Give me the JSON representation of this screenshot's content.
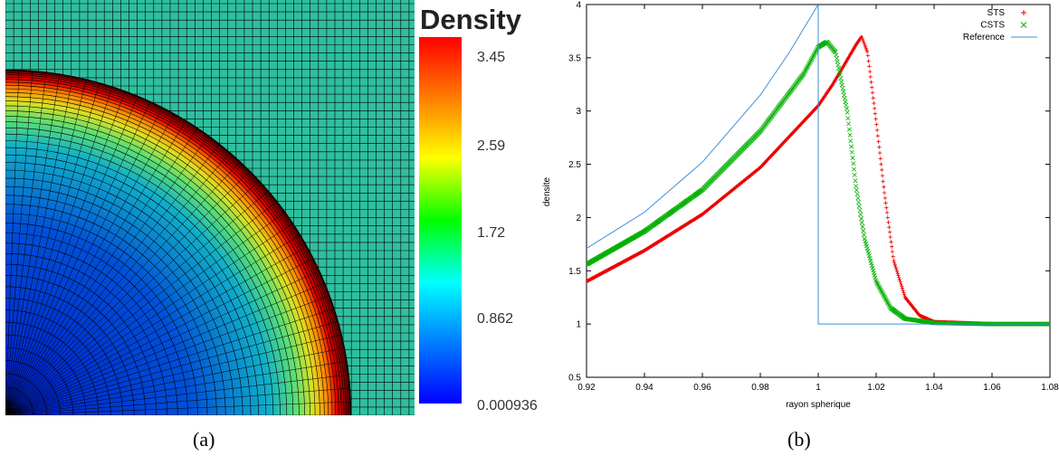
{
  "panel_a": {
    "caption": "(a)",
    "colorbar": {
      "title": "Density",
      "ticks": [
        "3.45",
        "2.59",
        "1.72",
        "0.862",
        "0.000936"
      ],
      "colors": [
        "#ff0000",
        "#ff8000",
        "#ffff00",
        "#00ff00",
        "#00ffff",
        "#0080ff",
        "#0000ff"
      ]
    },
    "mesh": {
      "background_color": "#2fbf9f",
      "line_color": "#000000"
    }
  },
  "panel_b": {
    "caption": "(b)"
  },
  "chart_data": {
    "type": "scatter",
    "xlabel": "rayon spherique",
    "ylabel": "densite",
    "xlim": [
      0.92,
      1.08
    ],
    "ylim": [
      0.5,
      4
    ],
    "xticks": [
      "0.92",
      "0.94",
      "0.96",
      "0.98",
      "1",
      "1.02",
      "1.04",
      "1.06",
      "1.08"
    ],
    "yticks": [
      "0.5",
      "1",
      "1.5",
      "2",
      "2.5",
      "3",
      "3.5",
      "4"
    ],
    "legend_position": "top-right",
    "grid": false,
    "series": [
      {
        "name": "STS",
        "marker": "+",
        "color": "#ee0000",
        "x": [
          0.92,
          0.94,
          0.96,
          0.98,
          1.0,
          1.005,
          1.01,
          1.013,
          1.015,
          1.017,
          1.02,
          1.023,
          1.026,
          1.03,
          1.035,
          1.04,
          1.06,
          1.08
        ],
        "y": [
          1.4,
          1.69,
          2.03,
          2.47,
          3.05,
          3.25,
          3.48,
          3.62,
          3.7,
          3.55,
          2.9,
          2.2,
          1.6,
          1.25,
          1.08,
          1.02,
          1.0,
          1.0
        ]
      },
      {
        "name": "CSTS",
        "marker": "x",
        "color": "#00b000",
        "x": [
          0.92,
          0.94,
          0.96,
          0.98,
          0.995,
          1.0,
          1.003,
          1.006,
          1.01,
          1.013,
          1.016,
          1.02,
          1.025,
          1.03,
          1.04,
          1.06,
          1.08
        ],
        "y": [
          1.56,
          1.87,
          2.26,
          2.81,
          3.35,
          3.6,
          3.65,
          3.55,
          3.0,
          2.3,
          1.8,
          1.4,
          1.15,
          1.05,
          1.01,
          1.0,
          1.0
        ]
      },
      {
        "name": "Reference",
        "marker": "line",
        "color": "#3b8fd9",
        "x": [
          0.92,
          0.94,
          0.96,
          0.98,
          0.99,
          1.0,
          1.0,
          1.08
        ],
        "y": [
          1.71,
          2.05,
          2.52,
          3.15,
          3.55,
          4.0,
          1.0,
          1.0
        ]
      }
    ]
  }
}
